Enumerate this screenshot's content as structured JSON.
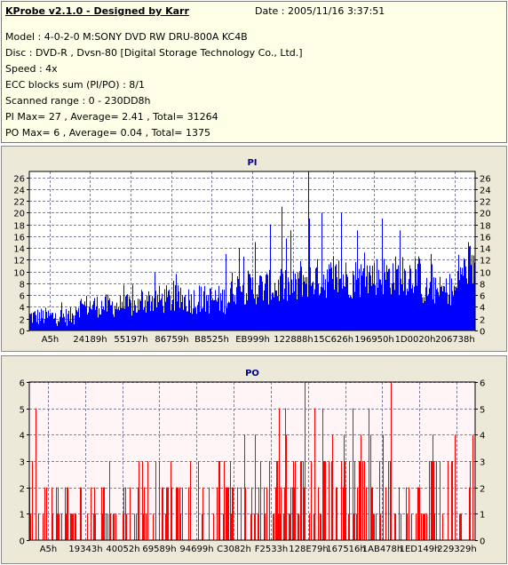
{
  "header": {
    "title": "KProbe v2.1.0 - Designed by Karr",
    "date": "Date : 2005/11/16 3:37:51"
  },
  "info": {
    "model": "Model : 4-0-2-0 M:SONY     DVD RW DRU-800A  KC4B",
    "disc": "Disc : DVD-R , Dvsn-80 [Digital Storage Technology Co., Ltd.]",
    "speed": "Speed : 4x",
    "ecc": "ECC blocks sum (PI/PO) : 8/1",
    "range": "Scanned range : 0 - 230DD8h",
    "pi_stats": "PI Max= 27 , Average= 2.41 , Total= 31264",
    "po_stats": "PO Max= 6 , Average= 0.04 , Total= 1375"
  },
  "colors": {
    "pi_bars": "#0000ff",
    "po_bars": "#ff0000",
    "pi_plot_bg": "#ffffff",
    "po_plot_bg": "#fff5f7",
    "grid": "#7f7f9f"
  },
  "chart_data": [
    {
      "type": "bar",
      "title": "PI",
      "ylim": [
        0,
        27
      ],
      "yticks": [
        0,
        2,
        4,
        6,
        8,
        10,
        12,
        14,
        16,
        18,
        20,
        22,
        24,
        26
      ],
      "xtick_labels": [
        "A5h",
        "24189h",
        "55197h",
        "86759h",
        "B8525h",
        "EB999h",
        "122888h",
        "15C626h",
        "196950h",
        "1D0020h",
        "206738h"
      ],
      "grid": true,
      "segments": [
        {
          "from": 0.0,
          "to": 0.1,
          "base": 2.2,
          "spread": 1.6
        },
        {
          "from": 0.1,
          "to": 0.25,
          "base": 4.0,
          "spread": 2.0
        },
        {
          "from": 0.25,
          "to": 0.45,
          "base": 5.0,
          "spread": 2.5
        },
        {
          "from": 0.45,
          "to": 0.6,
          "base": 7.0,
          "spread": 3.0
        },
        {
          "from": 0.6,
          "to": 0.75,
          "base": 8.5,
          "spread": 3.5
        },
        {
          "from": 0.75,
          "to": 0.88,
          "base": 9.0,
          "spread": 3.5
        },
        {
          "from": 0.88,
          "to": 0.96,
          "base": 6.5,
          "spread": 2.5
        },
        {
          "from": 0.96,
          "to": 1.0,
          "base": 10.0,
          "spread": 3.0
        }
      ],
      "peaks": [
        {
          "x": 0.625,
          "y": 27
        },
        {
          "x": 0.628,
          "y": 19
        },
        {
          "x": 0.655,
          "y": 20
        },
        {
          "x": 0.565,
          "y": 21
        },
        {
          "x": 0.54,
          "y": 18
        },
        {
          "x": 0.585,
          "y": 17
        },
        {
          "x": 0.7,
          "y": 20
        },
        {
          "x": 0.735,
          "y": 17
        },
        {
          "x": 0.79,
          "y": 19
        },
        {
          "x": 0.83,
          "y": 17
        },
        {
          "x": 0.985,
          "y": 15
        },
        {
          "x": 0.505,
          "y": 15
        },
        {
          "x": 0.47,
          "y": 14
        },
        {
          "x": 0.44,
          "y": 13
        },
        {
          "x": 0.9,
          "y": 13
        }
      ]
    },
    {
      "type": "bar",
      "title": "PO",
      "ylim": [
        0,
        6
      ],
      "yticks": [
        0,
        1,
        2,
        3,
        4,
        5,
        6
      ],
      "xtick_labels": [
        "A5h",
        "19343h",
        "40052h",
        "69589h",
        "94699h",
        "C3082h",
        "F2533h",
        "128E79h",
        "167516h",
        "1AB478h",
        "1ED149h",
        "229329h"
      ],
      "grid": true,
      "segments": [
        {
          "from": 0.0,
          "to": 0.25,
          "base": 0.55,
          "spread": 1.6
        },
        {
          "from": 0.25,
          "to": 0.5,
          "base": 1.0,
          "spread": 1.8
        },
        {
          "from": 0.5,
          "to": 1.0,
          "base": 1.3,
          "spread": 2.0
        }
      ],
      "peaks": [
        {
          "x": 0.618,
          "y": 6
        },
        {
          "x": 0.81,
          "y": 6
        },
        {
          "x": 0.725,
          "y": 5
        },
        {
          "x": 0.64,
          "y": 5
        },
        {
          "x": 0.76,
          "y": 5
        },
        {
          "x": 0.56,
          "y": 5
        },
        {
          "x": 0.905,
          "y": 4
        },
        {
          "x": 0.68,
          "y": 4
        },
        {
          "x": 0.505,
          "y": 4
        },
        {
          "x": 0.45,
          "y": 3
        },
        {
          "x": 0.36,
          "y": 3
        },
        {
          "x": 0.955,
          "y": 4
        }
      ]
    }
  ]
}
